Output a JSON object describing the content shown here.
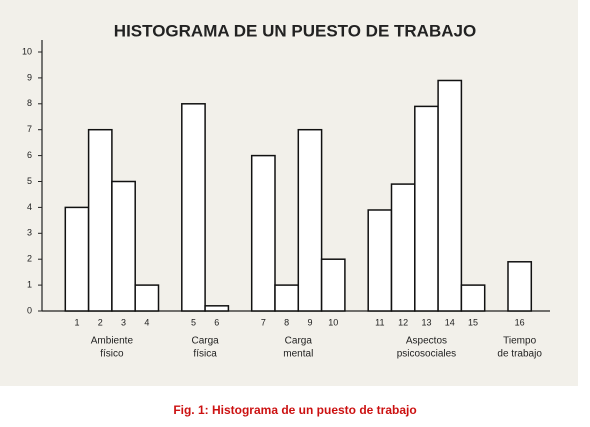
{
  "chart_data": {
    "type": "bar",
    "title": "HISTOGRAMA DE UN PUESTO DE TRABAJO",
    "categories": [
      "1",
      "2",
      "3",
      "4",
      "5",
      "6",
      "7",
      "8",
      "9",
      "10",
      "11",
      "12",
      "13",
      "14",
      "15",
      "16"
    ],
    "values": [
      4,
      7,
      5,
      1,
      8,
      0.2,
      6,
      1,
      7,
      2,
      3.9,
      4.9,
      7.9,
      8.9,
      1,
      1.9
    ],
    "groups": [
      {
        "lines": [
          "Ambiente",
          "físico"
        ],
        "categories": [
          "1",
          "2",
          "3",
          "4"
        ]
      },
      {
        "lines": [
          "Carga",
          "física"
        ],
        "categories": [
          "5",
          "6"
        ]
      },
      {
        "lines": [
          "Carga",
          "mental"
        ],
        "categories": [
          "7",
          "8",
          "9",
          "10"
        ]
      },
      {
        "lines": [
          "Aspectos",
          "psicosociales"
        ],
        "categories": [
          "11",
          "12",
          "13",
          "14",
          "15"
        ]
      },
      {
        "lines": [
          "Tiempo",
          "de trabajo"
        ],
        "categories": [
          "16"
        ]
      }
    ],
    "color": "#ffffff",
    "ylim": [
      0,
      10
    ],
    "yticks": [
      0,
      1,
      2,
      3,
      4,
      5,
      6,
      7,
      8,
      9,
      10
    ],
    "caption": "Fig. 1: Histograma de un puesto de trabajo"
  }
}
